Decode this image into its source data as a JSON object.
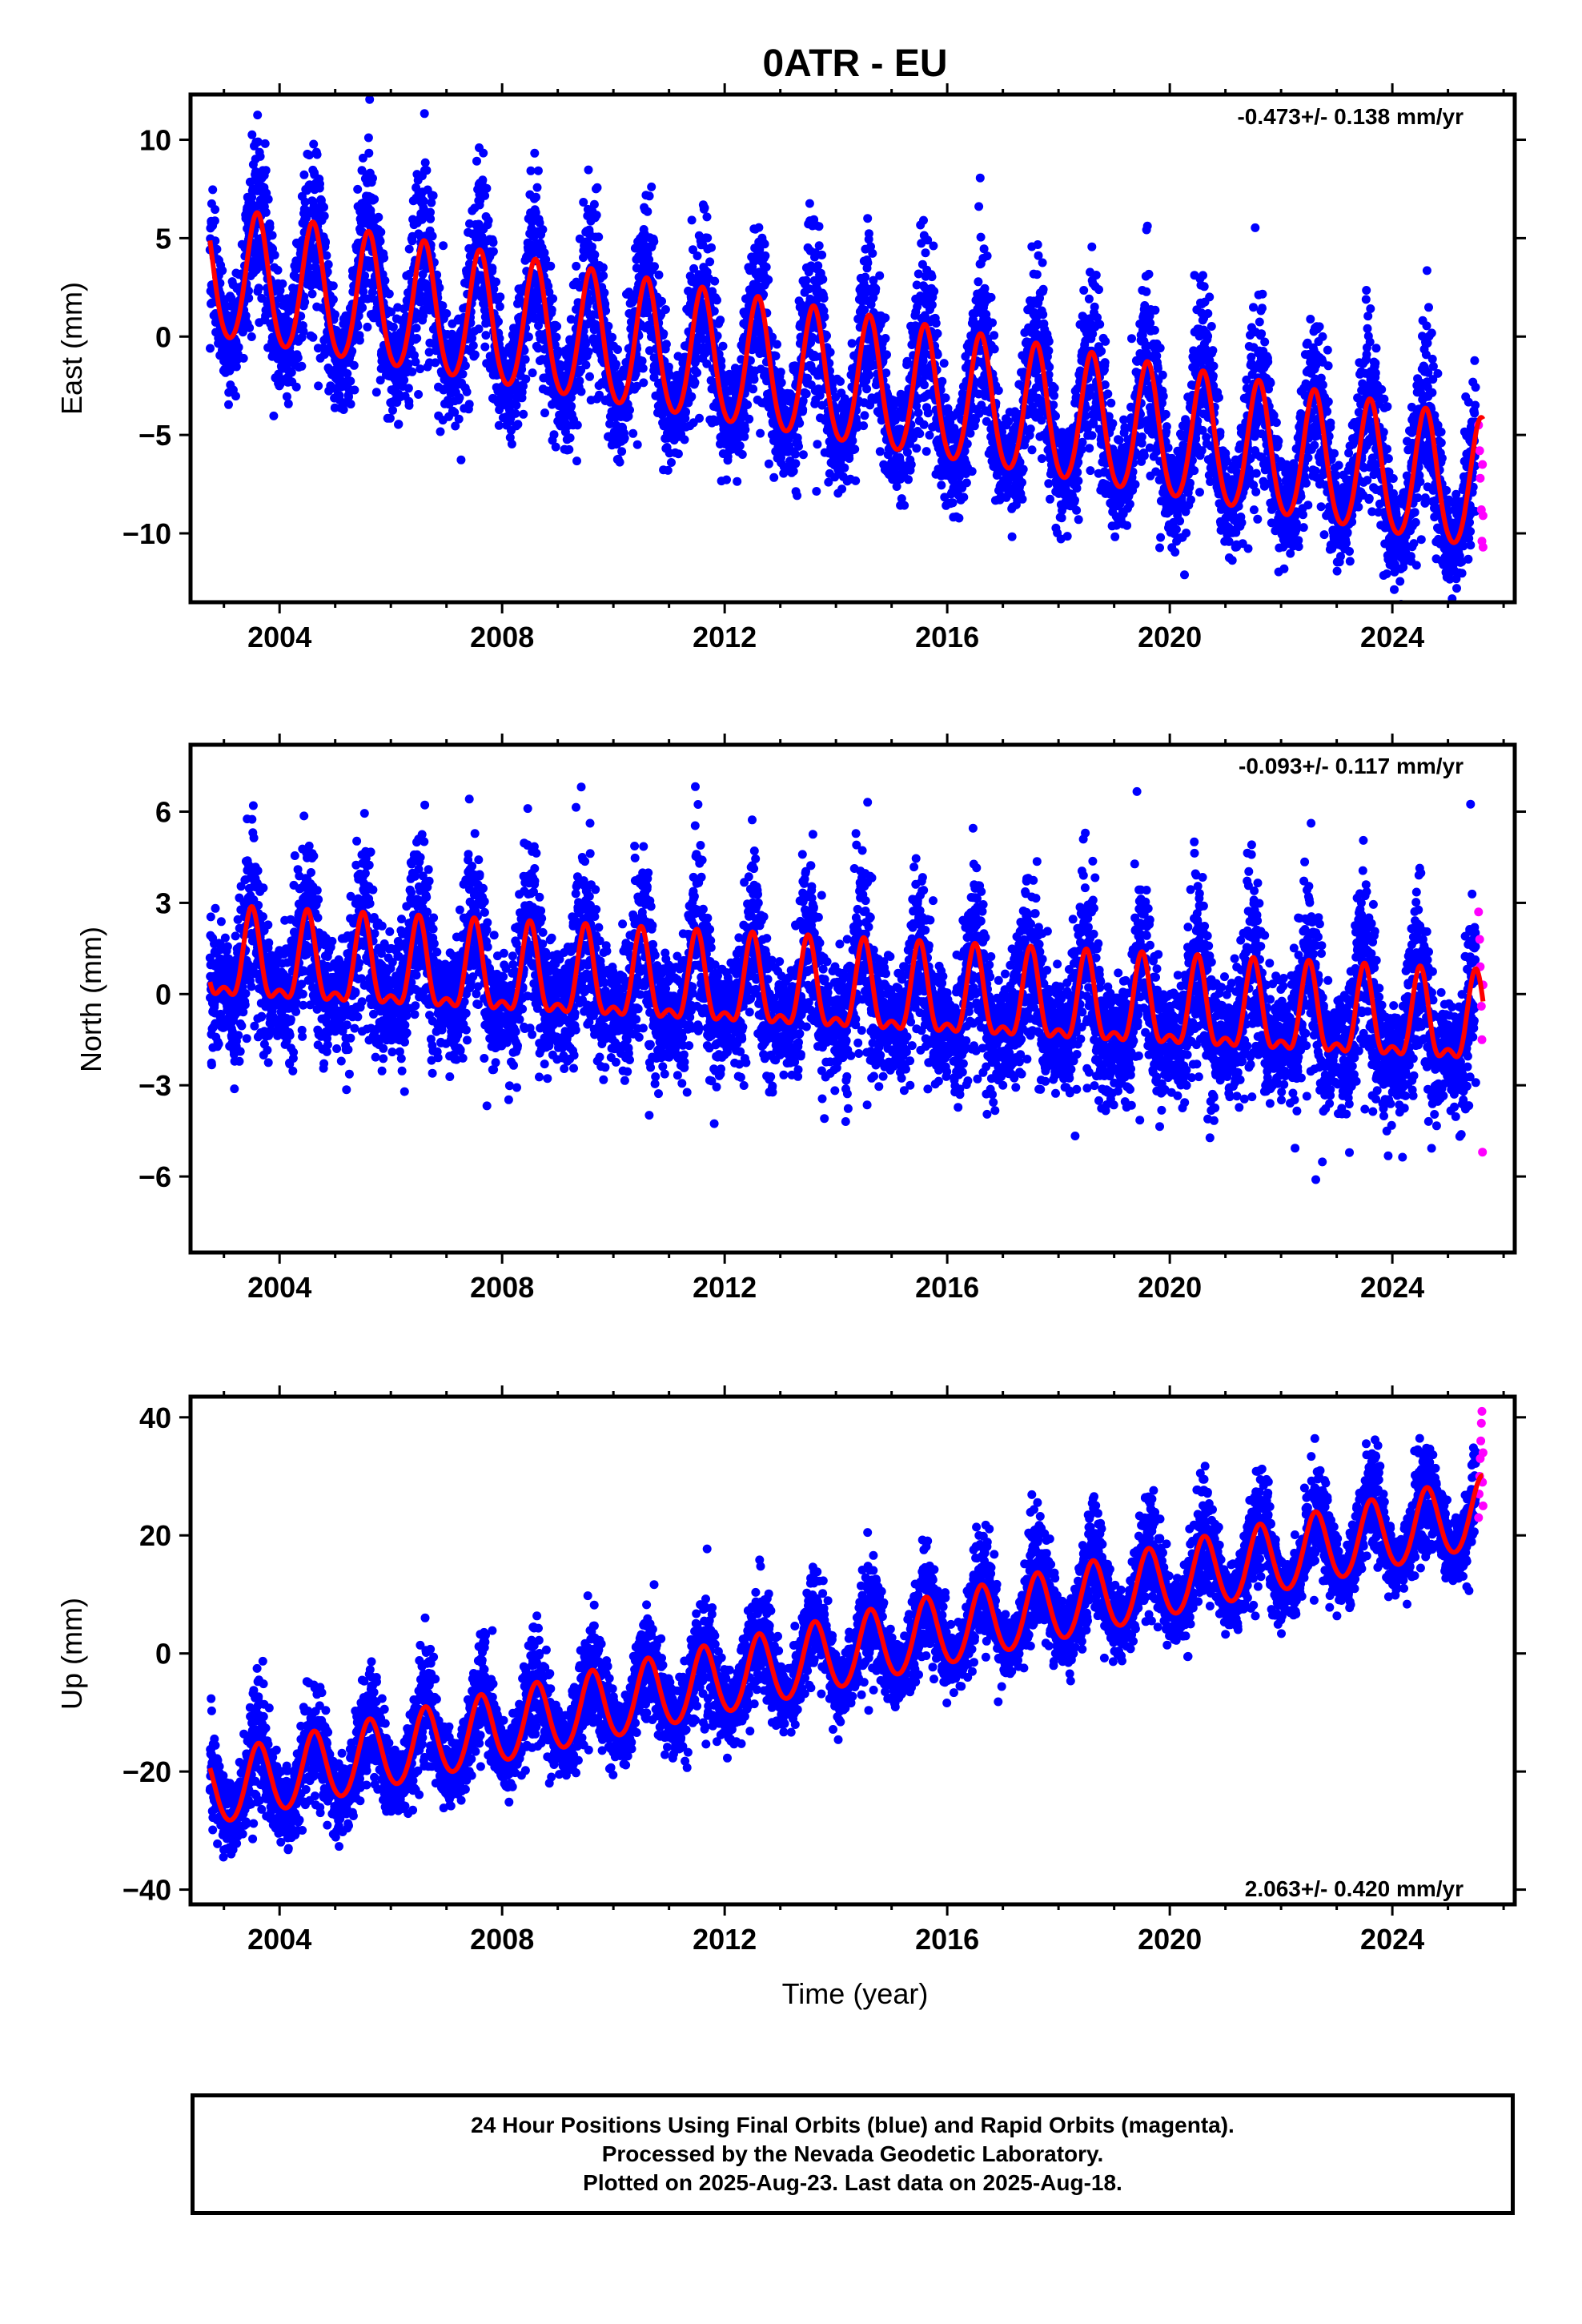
{
  "title": "0ATR - EU",
  "xlabel": "Time (year)",
  "caption": {
    "line1": "24 Hour Positions Using Final Orbits (blue) and Rapid Orbits (magenta).",
    "line2": "Processed by the Nevada Geodetic Laboratory.",
    "line3": "Plotted on 2025-Aug-23. Last data on 2025-Aug-18."
  },
  "colors": {
    "final_orbits": "#0000ff",
    "rapid_orbits": "#ff00ff",
    "model_fit": "#ff0000",
    "axes": "#000000"
  },
  "chart_data": [
    {
      "type": "scatter",
      "name": "east",
      "ylabel": "East (mm)",
      "rate_label": "-0.473+/- 0.138 mm/yr",
      "xlim": [
        2002.4,
        2026.2
      ],
      "ylim": [
        -13.5,
        12.3
      ],
      "xticks": [
        2004,
        2008,
        2012,
        2016,
        2020,
        2024
      ],
      "yticks": [
        10,
        5,
        0,
        -5,
        -10
      ],
      "ytick_labels": [
        "10",
        "5",
        "0",
        "−5",
        "−10"
      ],
      "grid": false,
      "model": {
        "offset": 3.05,
        "rate": -0.473,
        "annual_amp": 3.3,
        "semiannual_amp": 0.35,
        "peak_phase": 0.6
      },
      "scatter_model": {
        "noise_sd": 2.4,
        "start": 2002.75,
        "end": 2025.5
      },
      "rapid_points": [
        [
          2025.55,
          -4.5
        ],
        [
          2025.57,
          -5.8
        ],
        [
          2025.58,
          -7.2
        ],
        [
          2025.6,
          -8.8
        ],
        [
          2025.61,
          -10.4
        ],
        [
          2025.62,
          -6.5
        ],
        [
          2025.63,
          -9.1
        ],
        [
          2025.63,
          -10.7
        ]
      ]
    },
    {
      "type": "scatter",
      "name": "north",
      "ylabel": "North (mm)",
      "rate_label": "-0.093+/- 0.117 mm/yr",
      "xlim": [
        2002.4,
        2026.2
      ],
      "ylim": [
        -8.5,
        8.2
      ],
      "xticks": [
        2004,
        2008,
        2012,
        2016,
        2020,
        2024
      ],
      "yticks": [
        6,
        3,
        0,
        -3,
        -6
      ],
      "ytick_labels": [
        "6",
        "3",
        "0",
        "−3",
        "−6"
      ],
      "grid": false,
      "model": {
        "offset": 1.0,
        "rate": -0.093,
        "annual_amp": 1.35,
        "semiannual_amp": 0.6,
        "peak_phase": 0.5
      },
      "scatter_model": {
        "noise_sd": 1.6,
        "start": 2002.75,
        "end": 2025.5
      },
      "rapid_points": [
        [
          2025.55,
          2.7
        ],
        [
          2025.57,
          1.8
        ],
        [
          2025.58,
          0.9
        ],
        [
          2025.6,
          -0.4
        ],
        [
          2025.61,
          -1.5
        ],
        [
          2025.62,
          -5.2
        ],
        [
          2025.63,
          0.3
        ]
      ]
    },
    {
      "type": "scatter",
      "name": "up",
      "ylabel": "Up (mm)",
      "rate_label": "2.063+/- 0.420 mm/yr",
      "xlim": [
        2002.4,
        2026.2
      ],
      "ylim": [
        -42.5,
        43.5
      ],
      "xticks": [
        2004,
        2008,
        2012,
        2016,
        2020,
        2024
      ],
      "yticks": [
        40,
        20,
        0,
        -20,
        -40
      ],
      "ytick_labels": [
        "40",
        "20",
        "0",
        "−20",
        "−40"
      ],
      "grid": false,
      "model": {
        "offset": -23.5,
        "rate": 2.063,
        "annual_amp": 6.0,
        "semiannual_amp": 0.5,
        "peak_phase": 0.62
      },
      "scatter_model": {
        "noise_sd": 5.0,
        "start": 2002.75,
        "end": 2025.5
      },
      "rapid_points": [
        [
          2025.55,
          23
        ],
        [
          2025.56,
          27
        ],
        [
          2025.57,
          30
        ],
        [
          2025.58,
          33
        ],
        [
          2025.59,
          36
        ],
        [
          2025.6,
          39
        ],
        [
          2025.61,
          41
        ],
        [
          2025.62,
          29
        ],
        [
          2025.63,
          25
        ],
        [
          2025.63,
          34
        ]
      ]
    }
  ]
}
